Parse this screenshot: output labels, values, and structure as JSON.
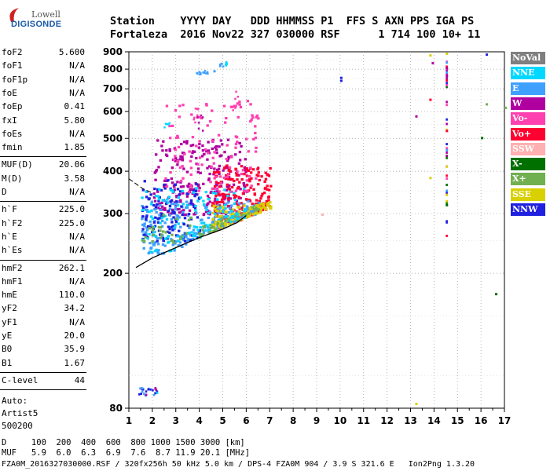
{
  "logo": {
    "brand_line1": "Lowell",
    "brand_line2": "DIGISONDE"
  },
  "header": {
    "line1": "Station    YYYY DAY   DDD HHMMSS P1  FFS S AXN PPS IGA PS",
    "line2": "Fortaleza  2016 Nov22 327 030000 RSF      1 714 100 10+ 11"
  },
  "params": {
    "group1": [
      {
        "key": "foF2",
        "value": "5.600"
      },
      {
        "key": "foF1",
        "value": "N/A"
      },
      {
        "key": "foF1p",
        "value": "N/A"
      },
      {
        "key": "foE",
        "value": "N/A"
      },
      {
        "key": "foEp",
        "value": "0.41"
      },
      {
        "key": "fxI",
        "value": "5.80"
      },
      {
        "key": "foEs",
        "value": "N/A"
      },
      {
        "key": "fmin",
        "value": "1.85"
      }
    ],
    "group2": [
      {
        "key": "MUF(D)",
        "value": "20.06"
      },
      {
        "key": "M(D)",
        "value": "3.58"
      },
      {
        "key": "D",
        "value": "N/A"
      }
    ],
    "group3": [
      {
        "key": "h`F",
        "value": "225.0"
      },
      {
        "key": "h`F2",
        "value": "225.0"
      },
      {
        "key": "h`E",
        "value": "N/A"
      },
      {
        "key": "h`Es",
        "value": "N/A"
      }
    ],
    "group4": [
      {
        "key": "hmF2",
        "value": "262.1"
      },
      {
        "key": "hmF1",
        "value": "N/A"
      },
      {
        "key": "hmE",
        "value": "110.0"
      },
      {
        "key": "yF2",
        "value": "34.2"
      },
      {
        "key": "yF1",
        "value": "N/A"
      },
      {
        "key": "yE",
        "value": "20.0"
      },
      {
        "key": "B0",
        "value": "35.9"
      },
      {
        "key": "B1",
        "value": "1.67"
      }
    ],
    "group5": [
      {
        "key": "C-level",
        "value": "44"
      }
    ],
    "auto": [
      "Auto:",
      "Artist5",
      "500200"
    ]
  },
  "legend": [
    {
      "label": "NoVal",
      "color": "#7f7f7f"
    },
    {
      "label": "NNE",
      "color": "#00d8ff"
    },
    {
      "label": "E",
      "color": "#3fa0ff"
    },
    {
      "label": "W",
      "color": "#b000a0"
    },
    {
      "label": "Vo-",
      "color": "#ff40b0"
    },
    {
      "label": "Vo+",
      "color": "#ff0030"
    },
    {
      "label": "SSW",
      "color": "#ffb0b0"
    },
    {
      "label": "X-",
      "color": "#007000"
    },
    {
      "label": "X+",
      "color": "#70b050"
    },
    {
      "label": "SSE",
      "color": "#d8d000"
    },
    {
      "label": "NNW",
      "color": "#2020e0"
    }
  ],
  "footer": {
    "line1": "D     100  200  400  600  800 1000 1500 3000 [km]",
    "line2": "MUF   5.9  6.0  6.3  6.9  7.6  8.7 11.9 20.1 [MHz]",
    "line3": "FZA0M_2016327030000.RSF / 320fx256h 50 kHz 5.0 km / DPS-4 FZA0M 904 / 3.9 S 321.6 E   Ion2Png 1.3.20"
  },
  "chart_data": {
    "type": "scatter",
    "title": "",
    "xlabel": "",
    "ylabel": "",
    "xlim": [
      1,
      17
    ],
    "ylim": [
      80,
      900
    ],
    "x_ticks": [
      "1",
      "2",
      "3",
      "4",
      "5",
      "6",
      "7",
      "8",
      "9",
      "10",
      "11",
      "12",
      "13",
      "14",
      "15",
      "16",
      "17"
    ],
    "y_ticks": [
      "80",
      "200",
      "300",
      "400",
      "500",
      "600",
      "700",
      "800",
      "900"
    ],
    "y_scale": "log",
    "grid": true,
    "legend_position": "right",
    "trace_curve": {
      "name": "",
      "points": [
        [
          1.3,
          208
        ],
        [
          2.0,
          222
        ],
        [
          3.0,
          238
        ],
        [
          4.0,
          255
        ],
        [
          5.0,
          270
        ],
        [
          5.6,
          282
        ],
        [
          6.0,
          296
        ]
      ]
    },
    "dashed_curve": {
      "name": "",
      "points": [
        [
          1.0,
          380
        ],
        [
          1.6,
          355
        ],
        [
          2.0,
          345
        ]
      ]
    },
    "echo_clusters": [
      {
        "series": "W",
        "x_range": [
          2.0,
          6.0
        ],
        "y_range": [
          300,
          500
        ],
        "density": "high"
      },
      {
        "series": "Vo+",
        "x_range": [
          4.5,
          7.0
        ],
        "y_range": [
          260,
          420
        ],
        "density": "high"
      },
      {
        "series": "E",
        "x_range": [
          1.5,
          6.5
        ],
        "y_range": [
          230,
          330
        ],
        "density": "high"
      },
      {
        "series": "NNW",
        "x_range": [
          1.5,
          4.0
        ],
        "y_range": [
          250,
          380
        ],
        "density": "medium"
      },
      {
        "series": "SSE",
        "x_range": [
          4.5,
          7.0
        ],
        "y_range": [
          260,
          320
        ],
        "density": "medium"
      },
      {
        "series": "NNE",
        "x_range": [
          1.5,
          6.0
        ],
        "y_range": [
          230,
          360
        ],
        "density": "medium"
      },
      {
        "series": "Vo-",
        "x_range": [
          2.5,
          6.5
        ],
        "y_range": [
          350,
          650
        ],
        "density": "medium"
      },
      {
        "series": "X+",
        "x_range": [
          1.5,
          6.5
        ],
        "y_range": [
          230,
          300
        ],
        "density": "low"
      }
    ],
    "isolated_points": [
      {
        "series": "NNW",
        "x": 10.0,
        "y": 760
      },
      {
        "series": "NNW",
        "x": 10.0,
        "y": 745
      },
      {
        "series": "NNW",
        "x": 16.2,
        "y": 890
      },
      {
        "series": "W",
        "x": 13.9,
        "y": 840
      },
      {
        "series": "W",
        "x": 14.5,
        "y": 810
      },
      {
        "series": "W",
        "x": 14.5,
        "y": 770
      },
      {
        "series": "W",
        "x": 13.2,
        "y": 585
      },
      {
        "series": "Vo+",
        "x": 14.5,
        "y": 530
      },
      {
        "series": "Vo+",
        "x": 13.8,
        "y": 655
      },
      {
        "series": "SSE",
        "x": 13.8,
        "y": 885
      },
      {
        "series": "SSE",
        "x": 14.5,
        "y": 895
      },
      {
        "series": "SSE",
        "x": 13.8,
        "y": 385
      },
      {
        "series": "SSE",
        "x": 13.2,
        "y": 83
      },
      {
        "series": "X-",
        "x": 16.0,
        "y": 505
      },
      {
        "series": "X-",
        "x": 16.6,
        "y": 175
      },
      {
        "series": "X-",
        "x": 14.5,
        "y": 320
      },
      {
        "series": "E",
        "x": 14.5,
        "y": 465
      },
      {
        "series": "E",
        "x": 4.6,
        "y": 795
      },
      {
        "series": "SSW",
        "x": 9.2,
        "y": 300
      },
      {
        "series": "X+",
        "x": 16.2,
        "y": 635
      },
      {
        "series": "X+",
        "x": 17.0,
        "y": 620
      }
    ],
    "low_cluster": {
      "x_range": [
        1.4,
        2.2
      ],
      "y": 90
    }
  }
}
